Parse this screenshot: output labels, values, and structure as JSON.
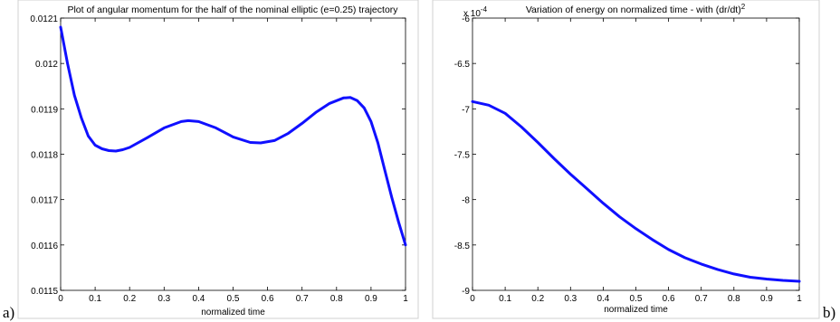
{
  "panel_labels": [
    "a)",
    "b)"
  ],
  "chart_data": [
    {
      "type": "line",
      "title": "Plot of angular momentum for the half of the nominal elliptic (e=0.25) trajectory",
      "xlabel": "normalized time",
      "ylabel": "",
      "exponent_label": "",
      "xlim": [
        0,
        1
      ],
      "ylim": [
        0.0115,
        0.0121
      ],
      "x_ticks": [
        0,
        0.1,
        0.2,
        0.3,
        0.4,
        0.5,
        0.6,
        0.7,
        0.8,
        0.9,
        1
      ],
      "x_tick_labels": [
        "0",
        "0.1",
        "0.2",
        "0.3",
        "0.4",
        "0.5",
        "0.6",
        "0.7",
        "0.8",
        "0.9",
        "1"
      ],
      "y_ticks": [
        0.0115,
        0.0116,
        0.0117,
        0.0118,
        0.0119,
        0.012,
        0.0121
      ],
      "y_tick_labels": [
        "0.0115",
        "0.0116",
        "0.0117",
        "0.0118",
        "0.0119",
        "0.012",
        "0.0121"
      ],
      "grid": false,
      "series": [
        {
          "color": "#1010ff",
          "x": [
            0,
            0.02,
            0.04,
            0.06,
            0.08,
            0.1,
            0.12,
            0.14,
            0.16,
            0.18,
            0.2,
            0.25,
            0.3,
            0.35,
            0.37,
            0.4,
            0.45,
            0.5,
            0.55,
            0.58,
            0.62,
            0.66,
            0.7,
            0.74,
            0.78,
            0.82,
            0.84,
            0.86,
            0.88,
            0.9,
            0.92,
            0.94,
            0.96,
            0.98,
            1.0
          ],
          "y": [
            0.01208,
            0.012,
            0.01193,
            0.01188,
            0.01184,
            0.01182,
            0.011812,
            0.011808,
            0.011807,
            0.01181,
            0.011815,
            0.011836,
            0.011858,
            0.011872,
            0.011874,
            0.011872,
            0.011858,
            0.011838,
            0.011826,
            0.011825,
            0.01183,
            0.011846,
            0.011868,
            0.011892,
            0.011912,
            0.011924,
            0.011925,
            0.011918,
            0.011902,
            0.011872,
            0.011825,
            0.011765,
            0.011705,
            0.01165,
            0.0116
          ]
        }
      ]
    },
    {
      "type": "line",
      "title": "Variation of energy on normalized time - with (dr/dt)",
      "title_superscript": "2",
      "xlabel": "normalized time",
      "ylabel": "",
      "exponent_label": "x 10",
      "exponent_power": "-4",
      "xlim": [
        0,
        1
      ],
      "ylim": [
        -9,
        -6
      ],
      "x_ticks": [
        0,
        0.1,
        0.2,
        0.3,
        0.4,
        0.5,
        0.6,
        0.7,
        0.8,
        0.9,
        1
      ],
      "x_tick_labels": [
        "0",
        "0.1",
        "0.2",
        "0.3",
        "0.4",
        "0.5",
        "0.6",
        "0.7",
        "0.8",
        "0.9",
        "1"
      ],
      "y_ticks": [
        -9,
        -8.5,
        -8,
        -7.5,
        -7,
        -6.5,
        -6
      ],
      "y_tick_labels": [
        "-9",
        "-8.5",
        "-8",
        "-7.5",
        "-7",
        "-6.5",
        "-6"
      ],
      "grid": false,
      "series": [
        {
          "color": "#1010ff",
          "x": [
            0,
            0.05,
            0.1,
            0.15,
            0.2,
            0.25,
            0.3,
            0.35,
            0.4,
            0.45,
            0.5,
            0.55,
            0.6,
            0.65,
            0.7,
            0.75,
            0.8,
            0.85,
            0.9,
            0.95,
            1.0
          ],
          "y": [
            -6.92,
            -6.96,
            -7.05,
            -7.2,
            -7.37,
            -7.55,
            -7.72,
            -7.88,
            -8.04,
            -8.19,
            -8.32,
            -8.44,
            -8.55,
            -8.64,
            -8.71,
            -8.77,
            -8.82,
            -8.855,
            -8.875,
            -8.89,
            -8.9
          ]
        }
      ]
    }
  ]
}
